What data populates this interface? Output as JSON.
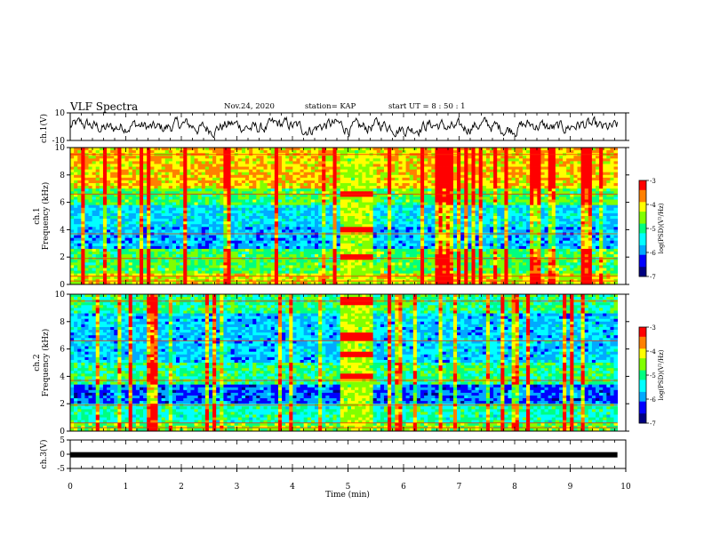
{
  "header": {
    "title": "VLF Spectra",
    "date": "Nov.24, 2020",
    "station": "station= KAP",
    "start_ut": "start  UT =   8  : 50 : 1"
  },
  "chart_data": [
    {
      "type": "line",
      "panel": "ch1-waveform",
      "ylabel": "ch.1(V)",
      "xlim": [
        0,
        9.85
      ],
      "ylim": [
        -10,
        10
      ],
      "yticks": [
        "10",
        "-10"
      ],
      "description_of_series": "noisy waveform oscillating roughly between -6 and 6 V"
    },
    {
      "type": "heatmap",
      "panel": "ch1-spectrogram",
      "ylabel": "Frequency (kHz)",
      "channel_label": "ch.1",
      "xlim": [
        0,
        9.85
      ],
      "ylim": [
        0,
        10
      ],
      "yticks": [
        "0",
        "2",
        "4",
        "6",
        "8",
        "10"
      ],
      "colorbar": {
        "label": "log(PSD)(V²/Hz)",
        "range": [
          -7,
          -3
        ],
        "ticks": [
          "-3",
          "-4",
          "-5",
          "-6",
          "-7"
        ]
      },
      "bright_band_time_min": [
        4.85,
        5.45
      ]
    },
    {
      "type": "heatmap",
      "panel": "ch2-spectrogram",
      "ylabel": "Frequency (kHz)",
      "channel_label": "ch.2",
      "xlim": [
        0,
        9.85
      ],
      "ylim": [
        0,
        10
      ],
      "yticks": [
        "0",
        "2",
        "4",
        "6",
        "8",
        "10"
      ],
      "colorbar": {
        "label": "log(PSD)(V²/Hz)",
        "range": [
          -7,
          -3
        ],
        "ticks": [
          "-3",
          "-4",
          "-5",
          "-6",
          "-7"
        ]
      },
      "bright_band_time_min": [
        4.85,
        5.45
      ]
    },
    {
      "type": "line",
      "panel": "ch3-signal",
      "ylabel": "ch.3(V)",
      "xlim": [
        0,
        10
      ],
      "ylim": [
        -5,
        5
      ],
      "yticks": [
        "5",
        "0",
        "-5"
      ],
      "constant_value": -0.2
    }
  ],
  "xaxis": {
    "label": "Time  (min)",
    "ticks": [
      "0",
      "1",
      "2",
      "3",
      "4",
      "5",
      "6",
      "7",
      "8",
      "9",
      "10"
    ]
  },
  "colors": {
    "colormap": [
      "#000080",
      "#0000ff",
      "#00aaff",
      "#00ffff",
      "#00ff80",
      "#80ff00",
      "#ffff00",
      "#ff8000",
      "#ff0000"
    ]
  }
}
